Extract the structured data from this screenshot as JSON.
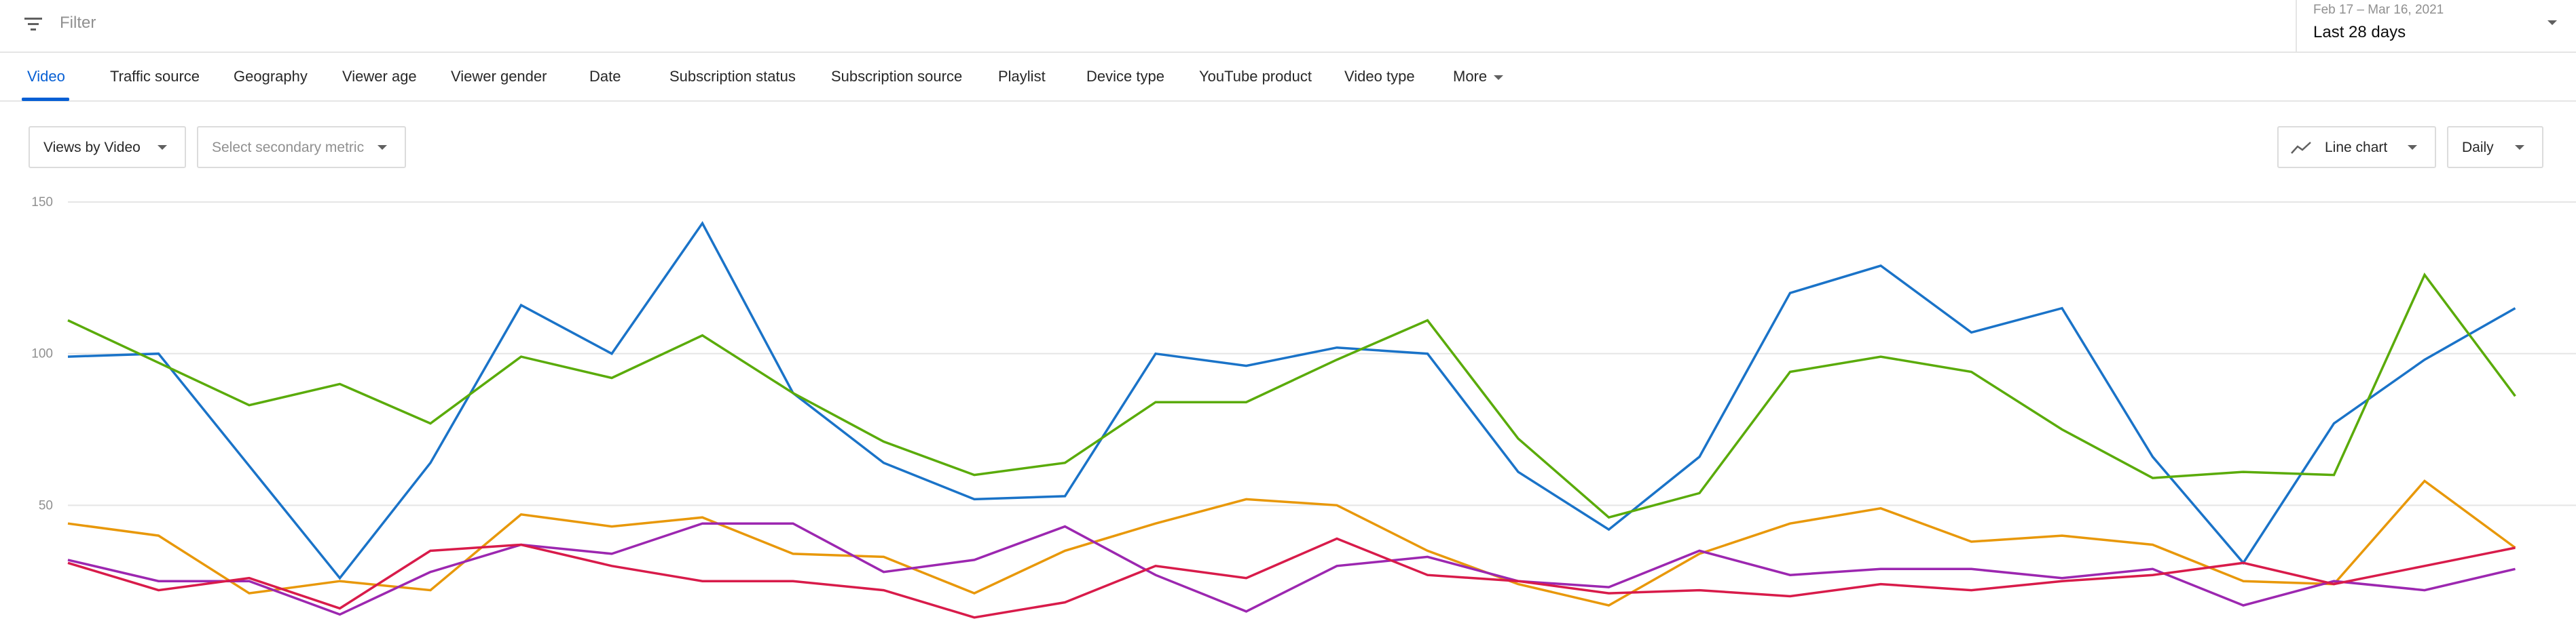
{
  "filter": {
    "placeholder": "Filter",
    "icon": "filter-icon"
  },
  "date_picker": {
    "range": "Feb 17 – Mar 16, 2021",
    "label": "Last 28 days"
  },
  "tabs": [
    {
      "label": "Video",
      "active": true
    },
    {
      "label": "Traffic source"
    },
    {
      "label": "Geography"
    },
    {
      "label": "Viewer age"
    },
    {
      "label": "Viewer gender"
    },
    {
      "label": "Date"
    },
    {
      "label": "Subscription status"
    },
    {
      "label": "Subscription source"
    },
    {
      "label": "Playlist"
    },
    {
      "label": "Device type"
    },
    {
      "label": "YouTube product"
    },
    {
      "label": "Video type"
    },
    {
      "label": "More"
    }
  ],
  "controls": {
    "primary_metric": "Views by Video",
    "secondary_metric": "Select secondary metric",
    "chart_type": "Line chart",
    "interval": "Daily"
  },
  "colors": {
    "accent": "#065fd4",
    "blue": "#1a73c8",
    "green": "#5aab0a",
    "orange": "#e8980a",
    "purple": "#9c27b0",
    "red": "#d81b4a"
  },
  "chart_data": {
    "type": "line",
    "x": [
      1,
      2,
      3,
      4,
      5,
      6,
      7,
      8,
      9,
      10,
      11,
      12,
      13,
      14,
      15,
      16,
      17,
      18,
      19,
      20,
      21,
      22,
      23,
      24,
      25,
      26,
      27,
      28,
      29
    ],
    "ylim": [
      0,
      150
    ],
    "yticks": [
      "50",
      "100",
      "150"
    ],
    "grid": true,
    "series": [
      {
        "color": "#1a73c8",
        "values": [
          99,
          100,
          63,
          26,
          64,
          116,
          100,
          143,
          87,
          64,
          52,
          53,
          100,
          96,
          102,
          100,
          61,
          42,
          66,
          120,
          129,
          107,
          115,
          66,
          31,
          77,
          98,
          115,
          null
        ]
      },
      {
        "color": "#5aab0a",
        "values": [
          111,
          97,
          83,
          90,
          77,
          99,
          92,
          106,
          87,
          71,
          60,
          64,
          84,
          84,
          98,
          111,
          72,
          46,
          54,
          94,
          99,
          94,
          75,
          59,
          61,
          60,
          126,
          86,
          null
        ]
      },
      {
        "color": "#e8980a",
        "values": [
          44,
          40,
          21,
          25,
          22,
          47,
          43,
          46,
          34,
          33,
          21,
          35,
          44,
          52,
          50,
          35,
          24,
          17,
          34,
          44,
          49,
          38,
          40,
          37,
          25,
          24,
          58,
          36,
          null
        ]
      },
      {
        "color": "#9c27b0",
        "values": [
          32,
          25,
          25,
          14,
          28,
          37,
          34,
          44,
          44,
          28,
          32,
          43,
          27,
          15,
          30,
          33,
          25,
          23,
          35,
          27,
          29,
          29,
          26,
          29,
          17,
          25,
          22,
          29,
          null
        ]
      },
      {
        "color": "#d81b4a",
        "values": [
          31,
          22,
          26,
          16,
          35,
          37,
          30,
          25,
          25,
          22,
          13,
          18,
          30,
          26,
          39,
          27,
          25,
          21,
          22,
          20,
          24,
          22,
          25,
          27,
          31,
          24,
          30,
          36,
          null
        ]
      }
    ]
  }
}
